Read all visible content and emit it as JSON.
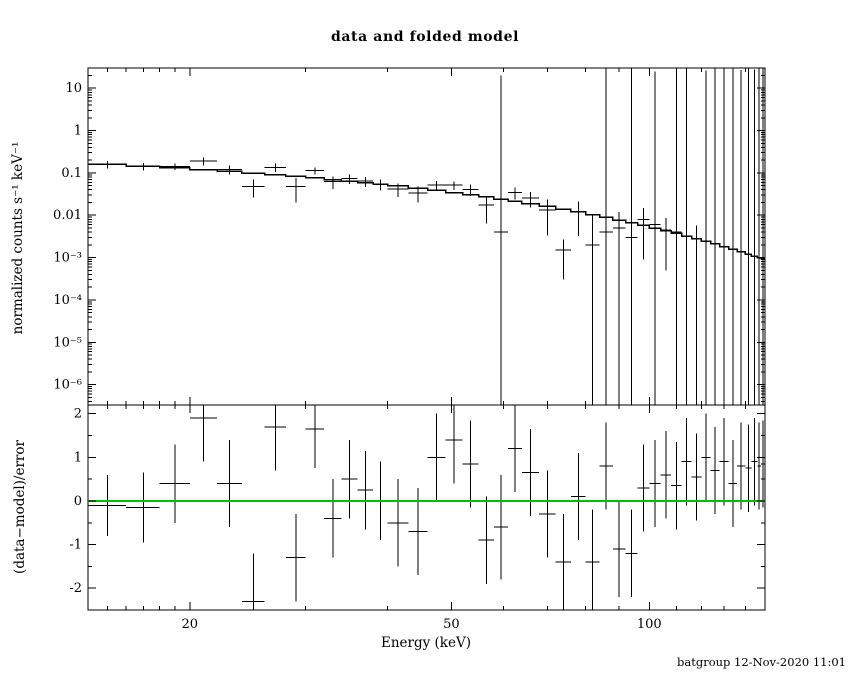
{
  "chart_data": {
    "type": "scatter",
    "title": "data and folded model",
    "xlabel": "Energy (keV)",
    "footer": "batgroup 12-Nov-2020 11:01",
    "colors": {
      "data": "#000000",
      "model": "#000000",
      "zero_line": "#00c000",
      "footer": "#0000bb"
    },
    "x_axis": {
      "scale": "log",
      "lim": [
        14,
        150
      ],
      "tick_values": [
        20,
        50,
        100
      ],
      "tick_labels": [
        "20",
        "50",
        "100"
      ],
      "minor_ticks": [
        15,
        16,
        17,
        18,
        19,
        30,
        40,
        60,
        70,
        80,
        90,
        110,
        120,
        130,
        140
      ]
    },
    "panels": [
      {
        "name": "spectrum",
        "ylabel": "normalized counts s⁻¹ keV⁻¹",
        "yscale": "log",
        "ylim": [
          3.3e-07,
          30
        ],
        "ytick_values": [
          1e-06,
          1e-05,
          0.0001,
          0.001,
          0.01,
          0.1,
          1,
          10
        ],
        "ytick_labels": [
          "10⁻⁶",
          "10⁻⁵",
          "10⁻⁴",
          "10⁻³",
          "0.01",
          "0.1",
          "1",
          "10"
        ],
        "series_names": [
          "data",
          "folded model"
        ],
        "bin_edges_kev": [
          14,
          16,
          18,
          20,
          22,
          24,
          26,
          28,
          30,
          32,
          34,
          36,
          38,
          40,
          43,
          46,
          49,
          52,
          55,
          58,
          61,
          64,
          68,
          72,
          76,
          80,
          84,
          88,
          92,
          96,
          100,
          104,
          108,
          112,
          116,
          120,
          124,
          128,
          132,
          136,
          140,
          143,
          146,
          148,
          150
        ],
        "data": {
          "e": [
            15,
            17,
            19,
            21,
            23,
            25,
            27,
            29,
            31,
            33,
            35,
            37,
            39,
            41.5,
            44.5,
            47.5,
            50.5,
            53.5,
            56.5,
            59.5,
            62.5,
            66,
            70,
            74,
            78,
            82,
            86,
            90,
            94,
            98,
            102,
            106,
            110,
            114,
            118,
            122,
            126,
            130,
            134,
            138,
            141.5,
            144.5,
            147,
            149
          ],
          "xe": [
            1,
            1,
            1,
            1,
            1,
            1,
            1,
            1,
            1,
            1,
            1,
            1,
            1,
            1.5,
            1.5,
            1.5,
            1.5,
            1.5,
            1.5,
            1.5,
            1.5,
            2,
            2,
            2,
            2,
            2,
            2,
            2,
            2,
            2,
            2,
            2,
            2,
            2,
            2,
            2,
            2,
            2,
            2,
            2,
            1.5,
            1.5,
            1,
            1
          ],
          "y": [
            0.1585,
            0.1413,
            0.1421,
            0.19,
            0.1208,
            0.048,
            0.135,
            0.048,
            0.1125,
            0.062,
            0.0733,
            0.0635,
            0.0545,
            0.0417,
            0.0338,
            0.0517,
            0.0512,
            0.0408,
            0.0173,
            0.004,
            0.0348,
            0.0254,
            0.0133,
            0.0015,
            0.0122,
            0.002,
            0.004,
            0.005,
            0.003,
            0.0079,
            0.006,
            0.0045,
            0.004,
            0.0032,
            0.0028,
            0.0024,
            0.0021,
            0.0018,
            0.0016,
            0.0014,
            0.0012,
            0.0011,
            0.001,
            0.0009
          ],
          "ye": [
            0.03,
            0.028,
            0.026,
            0.04,
            0.03,
            0.022,
            0.03,
            0.028,
            0.022,
            0.02,
            0.018,
            0.017,
            0.016,
            0.015,
            0.014,
            0.013,
            0.012,
            0.012,
            0.011,
            20,
            0.011,
            0.01,
            0.01,
            0.0012,
            0.009,
            0.008,
            30,
            0.007,
            35,
            0.007,
            25,
            0.004,
            28,
            30,
            0.003,
            26,
            32,
            28,
            30,
            27,
            30,
            28,
            30,
            30
          ]
        },
        "model": [
          0.1615,
          0.1455,
          0.1317,
          0.1195,
          0.1088,
          0.0993,
          0.0908,
          0.0831,
          0.0762,
          0.07,
          0.0643,
          0.0592,
          0.0545,
          0.0492,
          0.0436,
          0.0387,
          0.0344,
          0.0306,
          0.0272,
          0.0242,
          0.0216,
          0.0189,
          0.0163,
          0.014,
          0.0121,
          0.0104,
          0.009,
          0.0077,
          0.0067,
          0.0058,
          0.005,
          0.00432,
          0.00375,
          0.00324,
          0.00281,
          0.00243,
          0.00211,
          0.00183,
          0.00159,
          0.00138,
          0.00121,
          0.00109,
          0.001,
          0.00093
        ]
      },
      {
        "name": "residuals",
        "ylabel": "(data−model)/error",
        "yscale": "linear",
        "ylim": [
          -2.5,
          2.2
        ],
        "ytick_values": [
          -2,
          -1,
          0,
          1,
          2
        ],
        "ytick_labels": [
          "-2",
          "-1",
          "0",
          "1",
          "2"
        ],
        "yminor_ticks": [
          -1.5,
          -0.5,
          0.5,
          1.5
        ],
        "zero_line_color": "#00c000",
        "data": {
          "e": [
            15,
            17,
            19,
            21,
            23,
            25,
            27,
            29,
            31,
            33,
            35,
            37,
            39,
            41.5,
            44.5,
            47.5,
            50.5,
            53.5,
            56.5,
            59.5,
            62.5,
            66,
            70,
            74,
            78,
            82,
            86,
            90,
            94,
            98,
            102,
            106,
            110,
            114,
            118,
            122,
            126,
            130,
            134,
            138,
            141.5,
            144.5,
            147,
            149
          ],
          "xe": [
            1,
            1,
            1,
            1,
            1,
            1,
            1,
            1,
            1,
            1,
            1,
            1,
            1,
            1.5,
            1.5,
            1.5,
            1.5,
            1.5,
            1.5,
            1.5,
            1.5,
            2,
            2,
            2,
            2,
            2,
            2,
            2,
            2,
            2,
            2,
            2,
            2,
            2,
            2,
            2,
            2,
            2,
            2,
            2,
            1.5,
            1.5,
            1,
            1
          ],
          "r": [
            -0.1,
            -0.15,
            0.4,
            1.9,
            0.4,
            -2.3,
            1.7,
            -1.3,
            1.65,
            -0.4,
            0.5,
            0.25,
            0.0,
            -0.5,
            -0.7,
            1.0,
            1.4,
            0.85,
            -0.9,
            -0.6,
            1.2,
            0.65,
            -0.3,
            -1.4,
            0.1,
            -1.4,
            0.8,
            -1.1,
            -1.2,
            0.3,
            0.4,
            0.6,
            0.35,
            0.9,
            0.55,
            1.0,
            0.7,
            0.9,
            0.4,
            0.8,
            0.75,
            0.9,
            0.8,
            0.85
          ],
          "rerr": [
            0.7,
            0.8,
            0.9,
            1.0,
            1.0,
            1.1,
            1.0,
            1.0,
            0.9,
            0.9,
            0.9,
            0.9,
            0.9,
            1.0,
            1.0,
            1.0,
            1.0,
            1.0,
            1.0,
            1.2,
            1.0,
            1.0,
            1.0,
            1.1,
            1.0,
            1.2,
            1.0,
            1.1,
            1.0,
            1.0,
            1.0,
            1.0,
            1.0,
            1.0,
            1.0,
            1.0,
            1.0,
            1.0,
            1.0,
            1.0,
            1.0,
            1.0,
            1.0,
            1.0
          ]
        }
      }
    ]
  }
}
